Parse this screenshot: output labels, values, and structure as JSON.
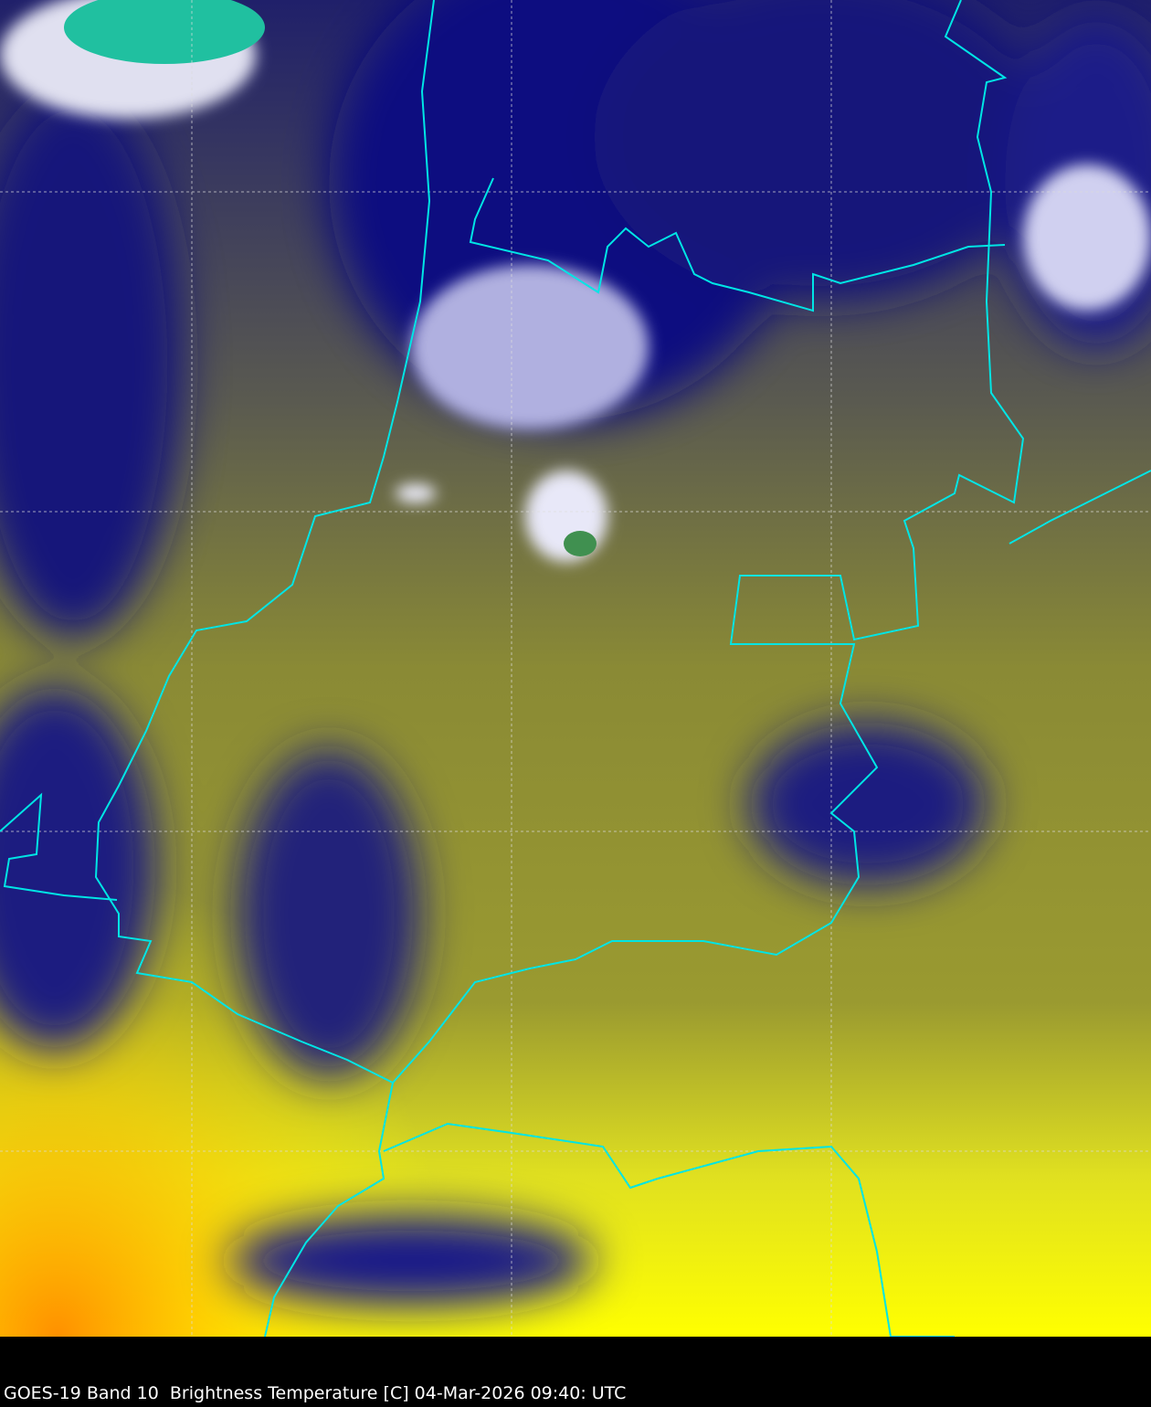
{
  "caption": "GOES-19 Band 10  Brightness Temperature [C] 04-Mar-2026 09:40: UTC",
  "colors": {
    "border": "#00e5e5",
    "cold_cloud": "#0a0a80",
    "warm_surface": "#8c8c30",
    "hot_surface": "#ffff00",
    "very_cold": "#30c890"
  },
  "grid": true
}
